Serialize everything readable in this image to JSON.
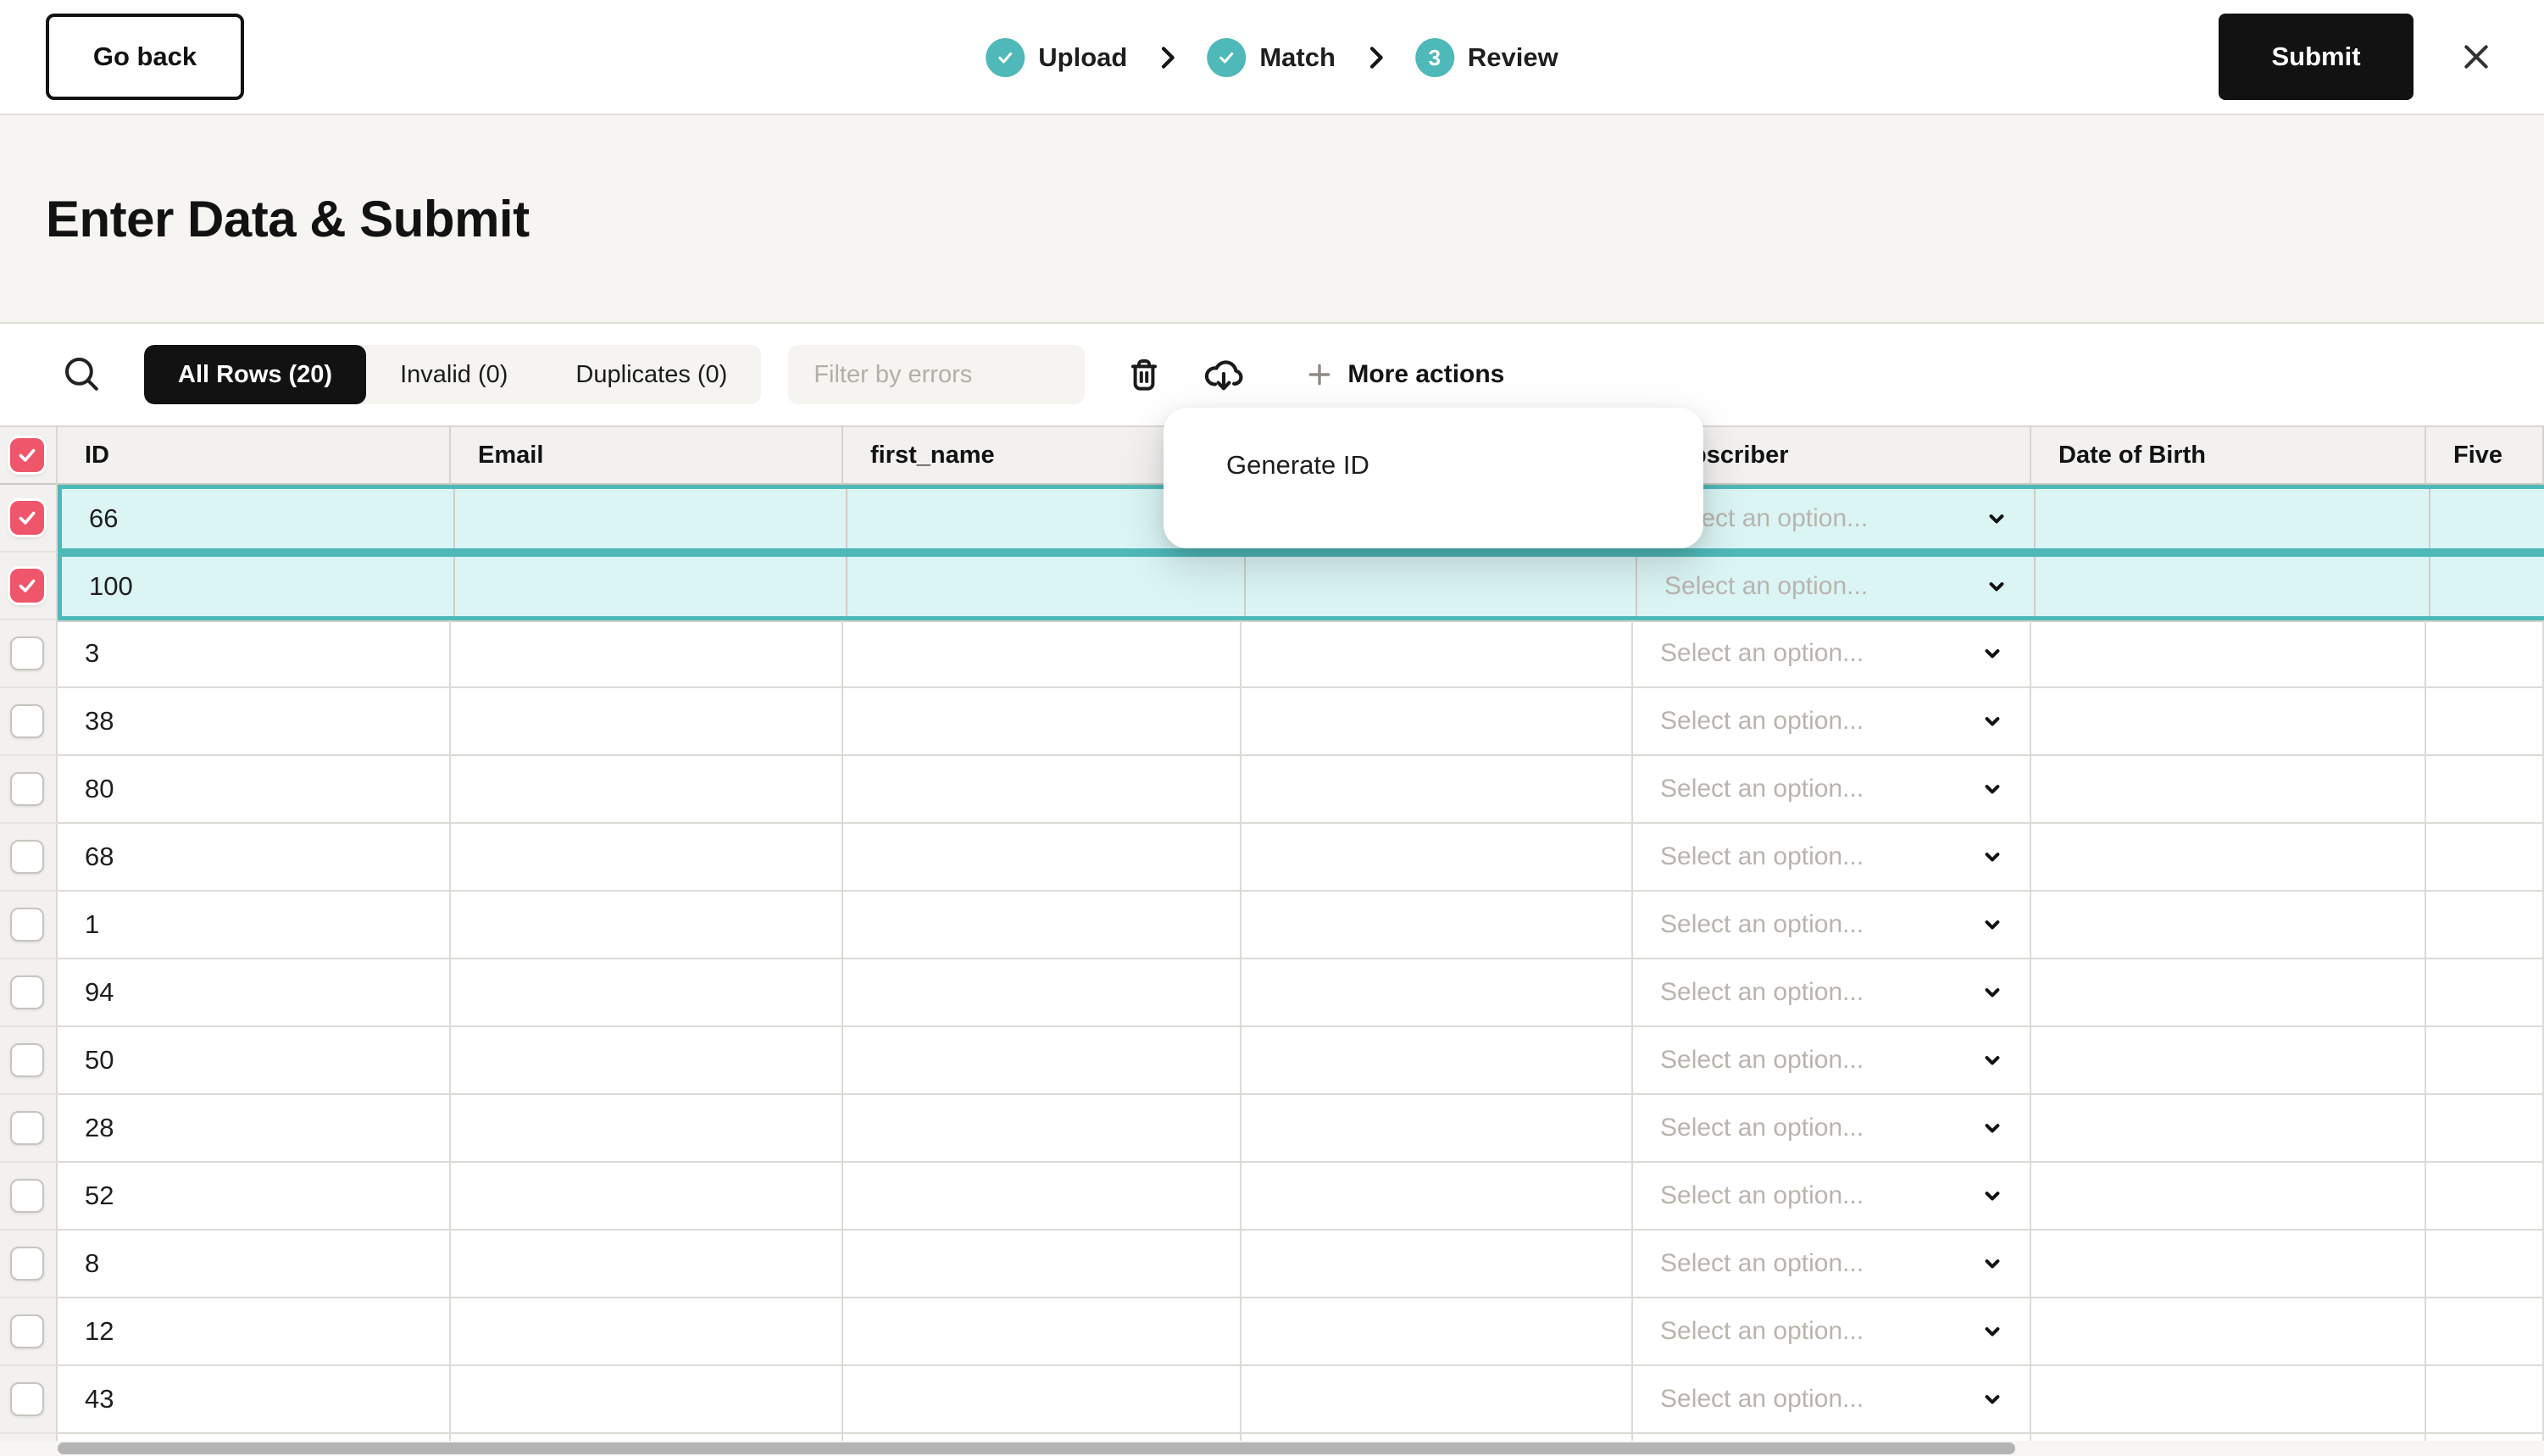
{
  "top_bar": {
    "go_back_label": "Go back",
    "steps": [
      {
        "label": "Upload",
        "state": "done",
        "number": "1"
      },
      {
        "label": "Match",
        "state": "done",
        "number": "2"
      },
      {
        "label": "Review",
        "state": "active",
        "number": "3"
      }
    ],
    "submit_label": "Submit"
  },
  "page": {
    "title": "Enter Data & Submit"
  },
  "toolbar": {
    "tabs": [
      {
        "label": "All Rows (20)",
        "active": true
      },
      {
        "label": "Invalid (0)",
        "active": false
      },
      {
        "label": "Duplicates (0)",
        "active": false
      }
    ],
    "filter_placeholder": "Filter by errors",
    "more_actions_label": "More actions"
  },
  "menu": {
    "items": [
      {
        "label": "Generate ID"
      }
    ]
  },
  "table": {
    "columns": [
      {
        "label": "ID"
      },
      {
        "label": "Email"
      },
      {
        "label": "first_name"
      },
      {
        "label": ""
      },
      {
        "label": "Subscriber"
      },
      {
        "label": "Date of Birth"
      },
      {
        "label": "Five"
      }
    ],
    "select_placeholder": "Select an option...",
    "header_checkbox_checked": true,
    "rows": [
      {
        "id": "66",
        "selected": true,
        "checked": true
      },
      {
        "id": "100",
        "selected": true,
        "checked": true
      },
      {
        "id": "3",
        "selected": false,
        "checked": false
      },
      {
        "id": "38",
        "selected": false,
        "checked": false
      },
      {
        "id": "80",
        "selected": false,
        "checked": false
      },
      {
        "id": "68",
        "selected": false,
        "checked": false
      },
      {
        "id": "1",
        "selected": false,
        "checked": false
      },
      {
        "id": "94",
        "selected": false,
        "checked": false
      },
      {
        "id": "50",
        "selected": false,
        "checked": false
      },
      {
        "id": "28",
        "selected": false,
        "checked": false
      },
      {
        "id": "52",
        "selected": false,
        "checked": false
      },
      {
        "id": "8",
        "selected": false,
        "checked": false
      },
      {
        "id": "12",
        "selected": false,
        "checked": false
      },
      {
        "id": "43",
        "selected": false,
        "checked": false
      }
    ]
  },
  "colors": {
    "accent_teal": "#4FB8B8",
    "selected_row_bg": "#DAF5F4",
    "checkbox_checked_red": "#F0566B"
  }
}
